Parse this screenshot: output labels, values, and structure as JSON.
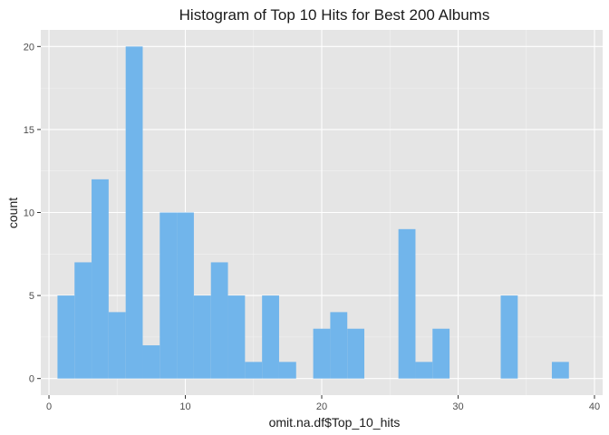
{
  "chart_data": {
    "type": "bar",
    "subtype": "histogram",
    "title": "Histogram of Top 10 Hits for Best 200 Albums",
    "xlabel": "omit.na.df$Top_10_hits",
    "ylabel": "count",
    "bin_width": 1.25,
    "bins": [
      {
        "x_center": 1.25,
        "count": 5
      },
      {
        "x_center": 2.5,
        "count": 7
      },
      {
        "x_center": 3.75,
        "count": 12
      },
      {
        "x_center": 5.0,
        "count": 4
      },
      {
        "x_center": 6.25,
        "count": 20
      },
      {
        "x_center": 7.5,
        "count": 2
      },
      {
        "x_center": 8.75,
        "count": 10
      },
      {
        "x_center": 10.0,
        "count": 10
      },
      {
        "x_center": 11.25,
        "count": 5
      },
      {
        "x_center": 12.5,
        "count": 7
      },
      {
        "x_center": 13.75,
        "count": 5
      },
      {
        "x_center": 15.0,
        "count": 1
      },
      {
        "x_center": 16.25,
        "count": 5
      },
      {
        "x_center": 17.5,
        "count": 1
      },
      {
        "x_center": 18.75,
        "count": 0
      },
      {
        "x_center": 20.0,
        "count": 3
      },
      {
        "x_center": 21.25,
        "count": 4
      },
      {
        "x_center": 22.5,
        "count": 3
      },
      {
        "x_center": 23.75,
        "count": 0
      },
      {
        "x_center": 25.0,
        "count": 0
      },
      {
        "x_center": 26.25,
        "count": 9
      },
      {
        "x_center": 27.5,
        "count": 1
      },
      {
        "x_center": 28.75,
        "count": 3
      },
      {
        "x_center": 30.0,
        "count": 0
      },
      {
        "x_center": 31.25,
        "count": 0
      },
      {
        "x_center": 32.5,
        "count": 0
      },
      {
        "x_center": 33.75,
        "count": 5
      },
      {
        "x_center": 35.0,
        "count": 0
      },
      {
        "x_center": 36.25,
        "count": 0
      },
      {
        "x_center": 37.5,
        "count": 1
      }
    ],
    "x_ticks": [
      0,
      10,
      20,
      30,
      40
    ],
    "y_ticks": [
      0,
      5,
      10,
      15,
      20
    ],
    "xlim": [
      -0.6,
      40.6
    ],
    "ylim": [
      -1,
      21
    ],
    "grid": true,
    "legend": "none",
    "colors": {
      "bar_fill": "#71b5eb",
      "panel_background": "#e5e5e5",
      "grid_major": "#ffffff",
      "grid_minor": "#f2f2f2"
    }
  }
}
